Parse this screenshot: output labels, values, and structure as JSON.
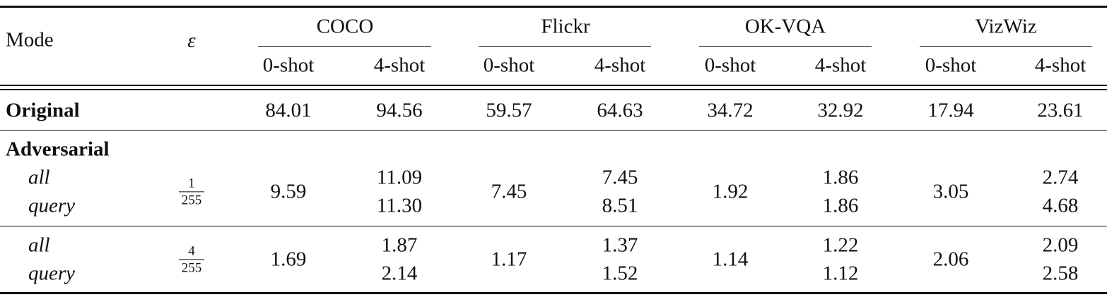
{
  "table": {
    "header": {
      "mode": "Mode",
      "epsilon": "ε",
      "groups": [
        "COCO",
        "Flickr",
        "OK-VQA",
        "VizWiz"
      ],
      "shots": [
        "0-shot",
        "4-shot",
        "0-shot",
        "4-shot",
        "0-shot",
        "4-shot",
        "0-shot",
        "4-shot"
      ]
    },
    "original": {
      "label": "Original",
      "values": [
        "84.01",
        "94.56",
        "59.57",
        "64.63",
        "34.72",
        "32.92",
        "17.94",
        "23.61"
      ]
    },
    "adversarial": {
      "label": "Adversarial",
      "blocks": [
        {
          "modes": [
            "all",
            "query"
          ],
          "epsilon": {
            "numerator": "1",
            "denominator": "255"
          },
          "zero_shot": [
            "9.59",
            "7.45",
            "1.92",
            "3.05"
          ],
          "four_shot": [
            [
              "11.09",
              "11.30"
            ],
            [
              "7.45",
              "8.51"
            ],
            [
              "1.86",
              "1.86"
            ],
            [
              "2.74",
              "4.68"
            ]
          ]
        },
        {
          "modes": [
            "all",
            "query"
          ],
          "epsilon": {
            "numerator": "4",
            "denominator": "255"
          },
          "zero_shot": [
            "1.69",
            "1.17",
            "1.14",
            "2.06"
          ],
          "four_shot": [
            [
              "1.87",
              "2.14"
            ],
            [
              "1.37",
              "1.52"
            ],
            [
              "1.22",
              "1.12"
            ],
            [
              "2.09",
              "2.58"
            ]
          ]
        }
      ]
    }
  }
}
